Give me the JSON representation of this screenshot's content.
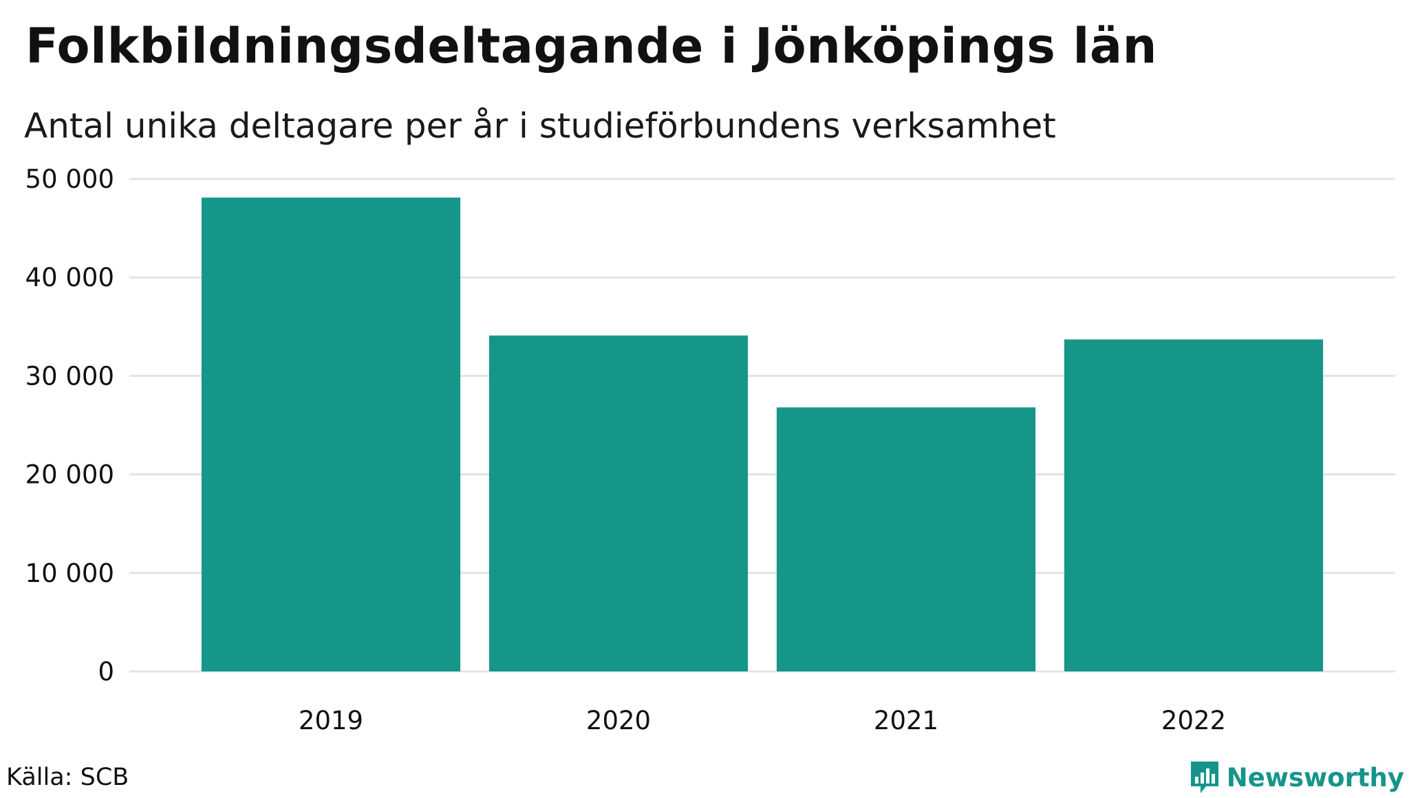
{
  "title": "Folkbildningsdeltagande i Jönköpings län",
  "subtitle": "Antal unika deltagare per år i studieförbundens verksamhet",
  "source": "Källa: SCB",
  "brand": {
    "name": "Newsworthy",
    "icon": "newsworthy-logo-icon"
  },
  "colors": {
    "bar": "#159688",
    "grid": "#e3e3e3",
    "text": "#111111",
    "brand": "#15958a"
  },
  "chart_data": {
    "type": "bar",
    "categories": [
      "2019",
      "2020",
      "2021",
      "2022"
    ],
    "values": [
      48100,
      34100,
      26800,
      33700
    ],
    "ylim": [
      0,
      50000
    ],
    "yticks": [
      0,
      10000,
      20000,
      30000,
      40000,
      50000
    ],
    "ytick_labels": [
      "0",
      "10 000",
      "20 000",
      "30 000",
      "40 000",
      "50 000"
    ],
    "xlabel": "",
    "ylabel": "",
    "grid": true,
    "legend": "none"
  }
}
